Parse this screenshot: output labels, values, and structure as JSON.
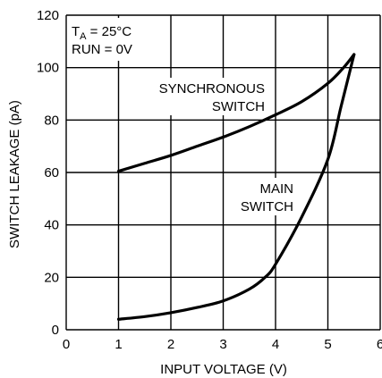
{
  "chart_data": {
    "type": "line",
    "xlabel": "INPUT VOLTAGE (V)",
    "ylabel": "SWITCH LEAKAGE (pA)",
    "xlim": [
      0,
      6
    ],
    "ylim": [
      0,
      120
    ],
    "xticks": [
      "0",
      "1",
      "2",
      "3",
      "4",
      "5",
      "6"
    ],
    "yticks": [
      "0",
      "20",
      "40",
      "60",
      "80",
      "100",
      "120"
    ],
    "grid": true,
    "conditions": {
      "ta_prefix": "T",
      "ta_sub": "A",
      "ta_value": " = 25°C",
      "run": "RUN = 0V"
    },
    "series": [
      {
        "name": "SYNCHRONOUS SWITCH",
        "label_line1": "SYNCHRONOUS",
        "label_line2": "SWITCH",
        "x": [
          1,
          1.5,
          2,
          2.5,
          3,
          3.5,
          4,
          4.5,
          5,
          5.3,
          5.5
        ],
        "y": [
          60.5,
          63.5,
          66.5,
          70,
          73.5,
          77.5,
          82,
          87,
          94,
          100,
          105
        ]
      },
      {
        "name": "MAIN SWITCH",
        "label_line1": "MAIN",
        "label_line2": "SWITCH",
        "x": [
          1,
          1.5,
          2,
          2.5,
          3,
          3.5,
          3.8,
          4,
          4.5,
          5,
          5.25,
          5.5
        ],
        "y": [
          4,
          5,
          6.5,
          8.5,
          11,
          15.5,
          20,
          25,
          43,
          65,
          85,
          105
        ]
      }
    ]
  }
}
